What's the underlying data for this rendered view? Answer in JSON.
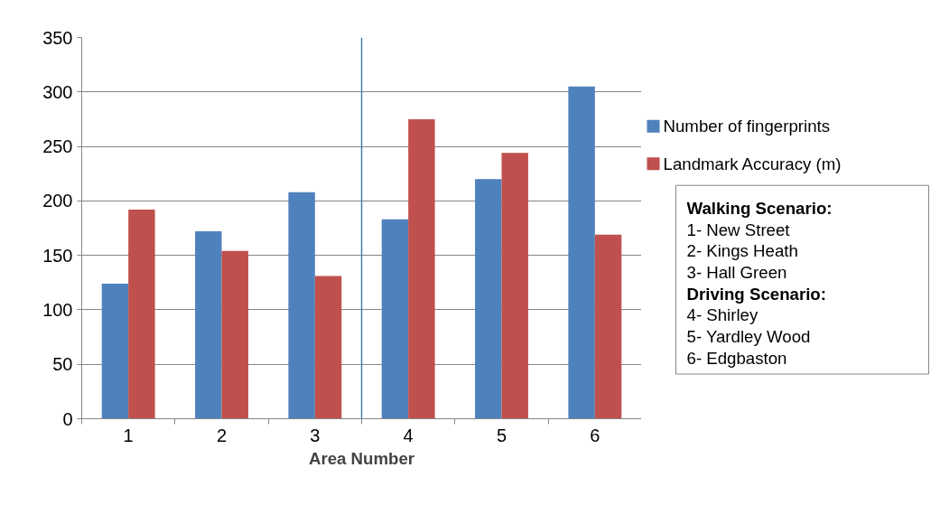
{
  "chart_data": {
    "type": "bar",
    "xlabel": "Area Number",
    "x": [
      1,
      2,
      3,
      4,
      5,
      6
    ],
    "xlim": [
      0.5,
      6.5
    ],
    "xticks": [
      1,
      2,
      3,
      4,
      5,
      6
    ],
    "ylim": [
      0,
      350
    ],
    "yticks": [
      0,
      50,
      100,
      150,
      200,
      250,
      300,
      350
    ],
    "grid": "y",
    "legend": "right",
    "series": [
      {
        "name": "Number of fingerprints",
        "color": "#4f81bd",
        "values": [
          124,
          172,
          208,
          183,
          220,
          305
        ]
      },
      {
        "name": "Landmark Accuracy (m)",
        "color": "#c0504d",
        "values": [
          192,
          154,
          131,
          275,
          244,
          169
        ]
      }
    ],
    "ref_lines": [
      {
        "axis": "x",
        "value": 3.5,
        "color": "#4a7ebb"
      }
    ],
    "annotations": [
      "Walking Scenario:",
      "1- New Street",
      "2- Kings Heath",
      "3- Hall Green",
      "Driving Scenario:",
      "4- Shirley",
      "5- Yardley Wood",
      "6- Edgbaston"
    ]
  }
}
